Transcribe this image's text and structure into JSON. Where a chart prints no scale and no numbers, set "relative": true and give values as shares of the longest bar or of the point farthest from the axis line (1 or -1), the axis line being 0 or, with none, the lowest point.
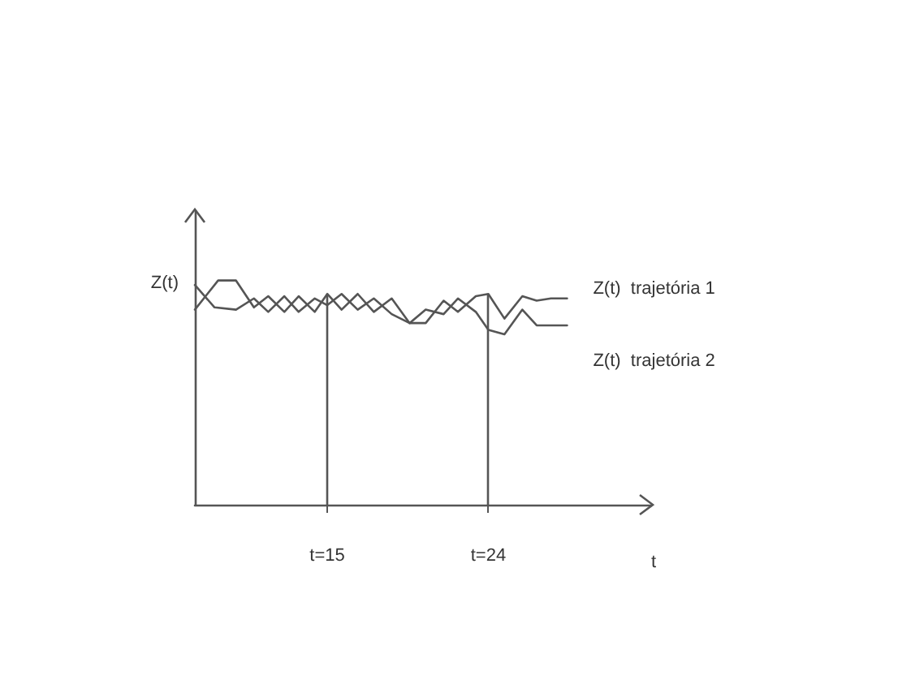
{
  "chart_data": {
    "type": "line",
    "relative": true,
    "xlabel": "t",
    "ylabel": "Z(t)",
    "xlim": [
      7.6,
      33.1
    ],
    "xticks": [
      {
        "value": 15,
        "label": "t=15"
      },
      {
        "value": 24,
        "label": "t=24"
      }
    ],
    "grid": false,
    "legend": false,
    "marker": "none",
    "line_style": "solid",
    "ref_lines": [
      {
        "axis": "x",
        "value": 15,
        "label": null,
        "color": "#555555"
      },
      {
        "axis": "x",
        "value": 24,
        "label": null,
        "color": "#555555"
      }
    ],
    "series": [
      {
        "name": "Z(t)  trajetória 1",
        "color": "#555555",
        "x": [
          7.6,
          8.9,
          9.9,
          10.9,
          11.7,
          12.6,
          13.4,
          14.3,
          15.0,
          15.8,
          16.7,
          17.6,
          18.6,
          19.6,
          20.5,
          21.5,
          22.3,
          23.3,
          24.0,
          24.9,
          25.9,
          26.7,
          27.5,
          28.4
        ],
        "values": [
          0.87,
          1,
          1,
          0.88,
          0.93,
          0.86,
          0.93,
          0.86,
          0.94,
          0.87,
          0.94,
          0.86,
          0.92,
          0.81,
          0.81,
          0.91,
          0.86,
          0.93,
          0.94,
          0.83,
          0.93,
          0.91,
          0.92,
          0.92
        ]
      },
      {
        "name": "Z(t)  trajetória 2",
        "color": "#555555",
        "x": [
          7.6,
          8.7,
          9.9,
          10.9,
          11.7,
          12.6,
          13.4,
          14.3,
          15.0,
          15.8,
          16.7,
          17.6,
          18.6,
          19.6,
          20.5,
          21.5,
          22.3,
          23.3,
          24.0,
          24.9,
          25.9,
          26.7,
          27.5,
          28.4
        ],
        "values": [
          0.98,
          0.88,
          0.87,
          0.92,
          0.86,
          0.93,
          0.86,
          0.92,
          0.89,
          0.94,
          0.87,
          0.92,
          0.85,
          0.81,
          0.87,
          0.85,
          0.92,
          0.86,
          0.78,
          0.76,
          0.87,
          0.8,
          0.8,
          0.8
        ]
      }
    ]
  }
}
